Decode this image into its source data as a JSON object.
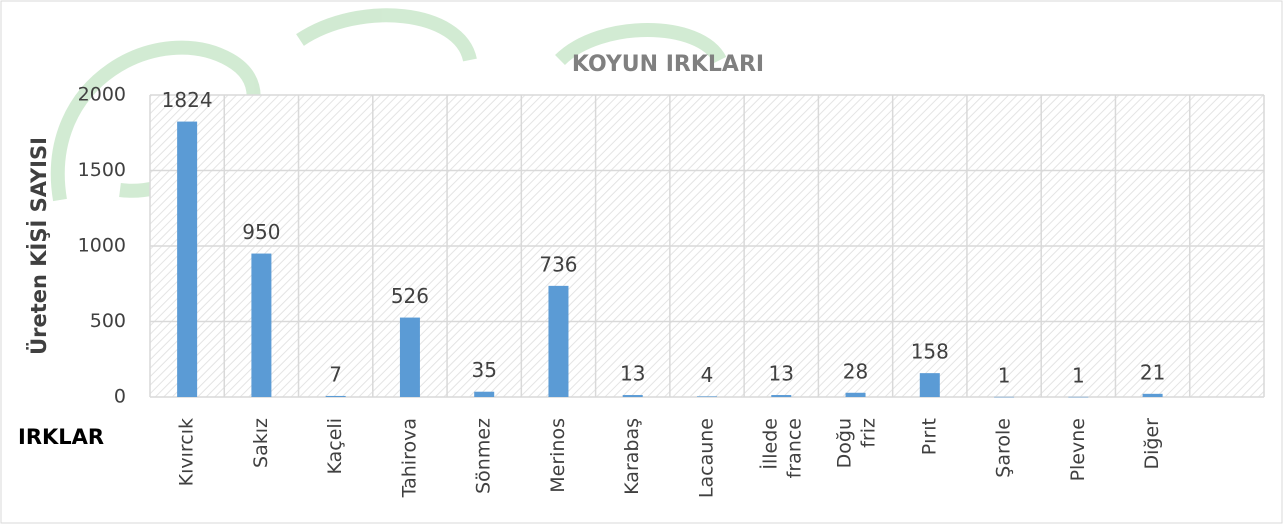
{
  "chart_data": {
    "type": "bar",
    "title": "KOYUN IRKLARI",
    "y_label": "Üreten KİŞİ SAYISI",
    "x_label": "IRKLAR",
    "categories": [
      "Kıvırcık",
      "Sakız",
      "Kaçeli",
      "Tahirova",
      "Sönmez",
      "Merinos",
      "Karabaş",
      "Lacaune",
      "İllede france",
      "Doğu friz",
      "Pırıt",
      "Şarole",
      "Plevne",
      "Diğer",
      null
    ],
    "values": [
      1824,
      950,
      7,
      526,
      35,
      736,
      13,
      4,
      13,
      28,
      158,
      1,
      1,
      21,
      null
    ],
    "color": "#5b9bd5",
    "ylim": [
      0,
      2000
    ],
    "yticks": [
      0,
      500,
      1000,
      1500,
      2000
    ],
    "grid": true
  }
}
